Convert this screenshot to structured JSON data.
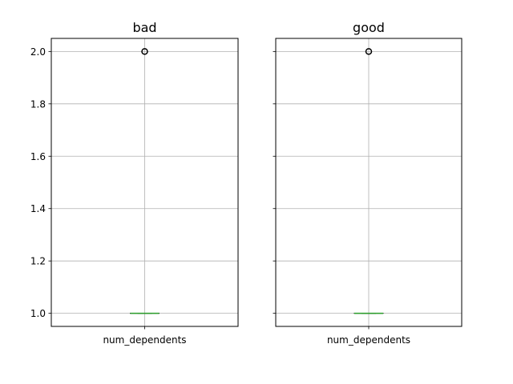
{
  "chart_data": [
    {
      "type": "box",
      "title": "bad",
      "categories": [
        "num_dependents"
      ],
      "boxes": [
        {
          "name": "num_dependents",
          "min": 1.0,
          "q1": 1.0,
          "median": 1.0,
          "q3": 1.0,
          "max": 1.0,
          "outliers": [
            2.0
          ]
        }
      ],
      "ylim": [
        0.95,
        2.05
      ],
      "yticks": [
        1.0,
        1.2,
        1.4,
        1.6,
        1.8,
        2.0
      ],
      "ytick_labels": [
        "1.0",
        "1.2",
        "1.4",
        "1.6",
        "1.8",
        "2.0"
      ],
      "show_ytick_labels": true,
      "grid": true
    },
    {
      "type": "box",
      "title": "good",
      "categories": [
        "num_dependents"
      ],
      "boxes": [
        {
          "name": "num_dependents",
          "min": 1.0,
          "q1": 1.0,
          "median": 1.0,
          "q3": 1.0,
          "max": 1.0,
          "outliers": [
            2.0
          ]
        }
      ],
      "ylim": [
        0.95,
        2.05
      ],
      "yticks": [
        1.0,
        1.2,
        1.4,
        1.6,
        1.8,
        2.0
      ],
      "ytick_labels": [
        "1.0",
        "1.2",
        "1.4",
        "1.6",
        "1.8",
        "2.0"
      ],
      "show_ytick_labels": false,
      "grid": true
    }
  ],
  "colors": {
    "median": "#2ca02c",
    "grid": "#b0b0b0",
    "frame": "#000000"
  }
}
